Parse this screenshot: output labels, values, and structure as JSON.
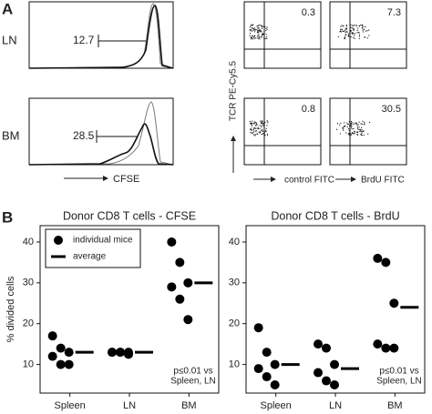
{
  "panel_a": {
    "label": "A",
    "histograms": [
      {
        "label": "LN",
        "value": 12.7
      },
      {
        "label": "BM",
        "value": 28.5
      }
    ],
    "hist_x_label": "CFSE",
    "dot_y_label": "TCR PE-Cy5.5",
    "dot_x_labels": [
      "control FITC",
      "BrdU FITC"
    ],
    "quadrant_values": [
      [
        0.3,
        7.3
      ],
      [
        0.8,
        30.5
      ]
    ]
  },
  "panel_b_label": "B",
  "chart_data": [
    {
      "type": "dotplot",
      "title": "Donor CD8 T cells - CFSE",
      "y_label": "% divided cells",
      "categories": [
        "Spleen",
        "LN",
        "BM"
      ],
      "series": [
        {
          "name": "individual mice",
          "color": "#000000",
          "values": [
            [
              17,
              14,
              13,
              12,
              10,
              10
            ],
            [
              13,
              13,
              13,
              13,
              13,
              12.5
            ],
            [
              40,
              35,
              30,
              29,
              26,
              21
            ]
          ]
        },
        {
          "name": "average",
          "color": "#000000",
          "values": [
            13,
            13,
            30
          ]
        }
      ],
      "ylim": [
        3,
        44
      ],
      "yticks": [
        10,
        20,
        30,
        40
      ],
      "legend": "top-left",
      "annotation": [
        "p≤0.01 vs",
        "Spleen, LN"
      ]
    },
    {
      "type": "dotplot",
      "title": "Donor CD8 T  cells - BrdU",
      "categories": [
        "Spleen",
        "LN",
        "BM"
      ],
      "series": [
        {
          "color": "#000000",
          "values": [
            [
              19,
              13,
              10,
              9,
              7,
              5
            ],
            [
              15,
              14,
              10,
              8,
              6,
              5
            ],
            [
              36,
              35,
              25,
              15,
              14,
              14
            ]
          ]
        },
        {
          "color": "#000000",
          "values": [
            10,
            9,
            24
          ]
        }
      ],
      "ylim": [
        3,
        44
      ],
      "yticks": [
        10,
        20,
        30,
        40
      ],
      "annotation": [
        "p≤0.01 vs",
        "Spleen, LN"
      ]
    }
  ]
}
